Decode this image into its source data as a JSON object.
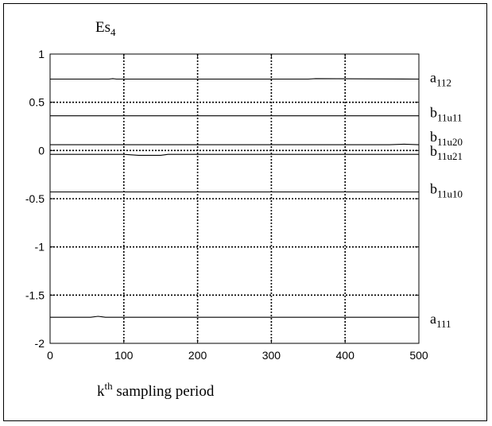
{
  "chart_data": {
    "type": "line",
    "title_main": "Es",
    "title_sub": "4",
    "xlabel_main": "k",
    "xlabel_sup": "th",
    "xlabel_rest": " sampling period",
    "ylabel": "",
    "xlim": [
      0,
      500
    ],
    "ylim": [
      -2,
      1
    ],
    "xticks": [
      0,
      100,
      200,
      300,
      400,
      500
    ],
    "yticks": [
      -2,
      -1.5,
      -1,
      -0.5,
      0,
      0.5,
      1
    ],
    "xtick_labels": [
      "0",
      "100",
      "200",
      "300",
      "400",
      "500"
    ],
    "ytick_labels": [
      "-2",
      "-1.5",
      "-1",
      "-0.5",
      "0",
      "0.5",
      "1"
    ],
    "grid": true,
    "series": [
      {
        "base": "a",
        "sub": "112",
        "values": [
          [
            0,
            0.74
          ],
          [
            80,
            0.74
          ],
          [
            85,
            0.745
          ],
          [
            90,
            0.74
          ],
          [
            350,
            0.74
          ],
          [
            360,
            0.745
          ],
          [
            500,
            0.74
          ]
        ]
      },
      {
        "base": "b",
        "sub": "11u11",
        "values": [
          [
            0,
            0.36
          ],
          [
            500,
            0.36
          ]
        ]
      },
      {
        "base": "b",
        "sub": "11u20",
        "values": [
          [
            0,
            0.06
          ],
          [
            460,
            0.06
          ],
          [
            480,
            0.065
          ],
          [
            500,
            0.06
          ]
        ]
      },
      {
        "base": "b",
        "sub": "11u21",
        "values": [
          [
            0,
            -0.04
          ],
          [
            100,
            -0.04
          ],
          [
            120,
            -0.05
          ],
          [
            150,
            -0.05
          ],
          [
            160,
            -0.04
          ],
          [
            500,
            -0.04
          ]
        ]
      },
      {
        "base": "b",
        "sub": "11u10",
        "values": [
          [
            0,
            -0.43
          ],
          [
            500,
            -0.43
          ]
        ]
      },
      {
        "base": "a",
        "sub": "111",
        "values": [
          [
            0,
            -1.73
          ],
          [
            55,
            -1.73
          ],
          [
            65,
            -1.72
          ],
          [
            75,
            -1.73
          ],
          [
            500,
            -1.73
          ]
        ]
      }
    ]
  }
}
